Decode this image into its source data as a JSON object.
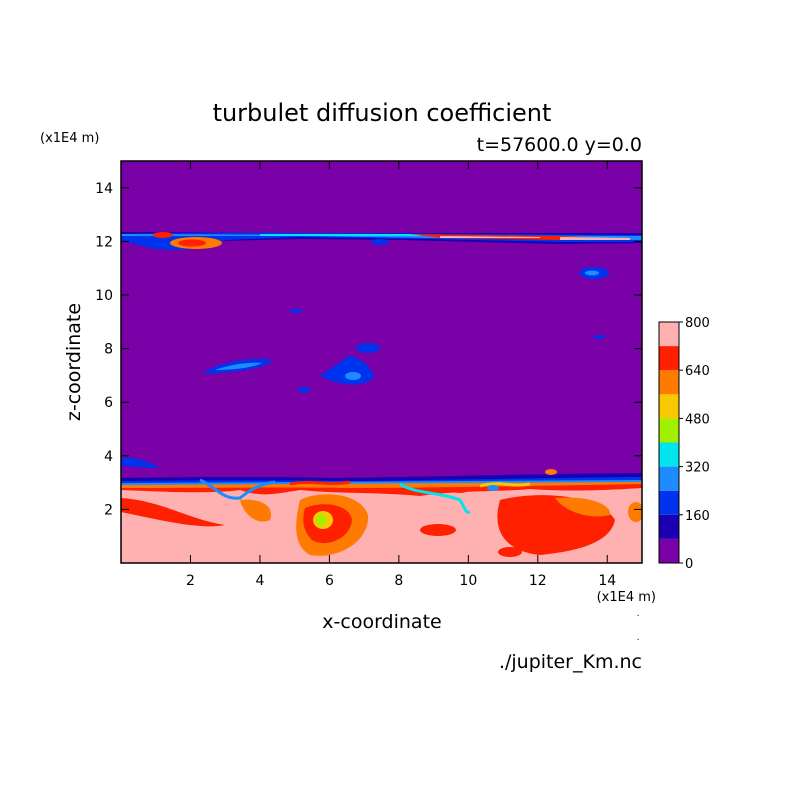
{
  "chart_data": {
    "type": "heatmap",
    "title": "turbulet diffusion coefficient",
    "subtitle": "t=57600.0 y=0.0",
    "xlabel": "x-coordinate",
    "ylabel": "z-coordinate",
    "x_scale_label": "(x1E4 m)",
    "y_scale_label": "(x1E4 m)",
    "footer": "./jupiter_Km.nc",
    "xlim": [
      0,
      15
    ],
    "ylim": [
      0,
      15
    ],
    "x_ticks": [
      2,
      4,
      6,
      8,
      10,
      12,
      14
    ],
    "y_ticks": [
      2,
      4,
      6,
      8,
      10,
      12,
      14
    ],
    "colorbar": {
      "min": 0,
      "max": 800,
      "levels": [
        0,
        80,
        160,
        240,
        320,
        400,
        480,
        560,
        640,
        720,
        800
      ],
      "tick_labels": [
        "0",
        "160",
        "320",
        "480",
        "640",
        "800"
      ],
      "colors": [
        "#7a00a8",
        "#1a00b0",
        "#0033ee",
        "#1e8cff",
        "#00e5ee",
        "#a0f000",
        "#f8c800",
        "#ff7a00",
        "#ff2000",
        "#f0000a",
        "#ffb0b0"
      ]
    },
    "features": [
      {
        "label": "upper turbulent layer",
        "z": 12.1,
        "x_range": [
          0,
          15
        ],
        "max_value": 700
      },
      {
        "label": "lower turbulent boundary layer",
        "z_range": [
          0,
          3.3
        ],
        "max_value": 800
      },
      {
        "label": "mid-level eddy",
        "x": 6.8,
        "z": 7.0,
        "max_value": 300
      },
      {
        "label": "mid-level eddy",
        "x": 3.2,
        "z": 7.2,
        "max_value": 200
      }
    ]
  }
}
